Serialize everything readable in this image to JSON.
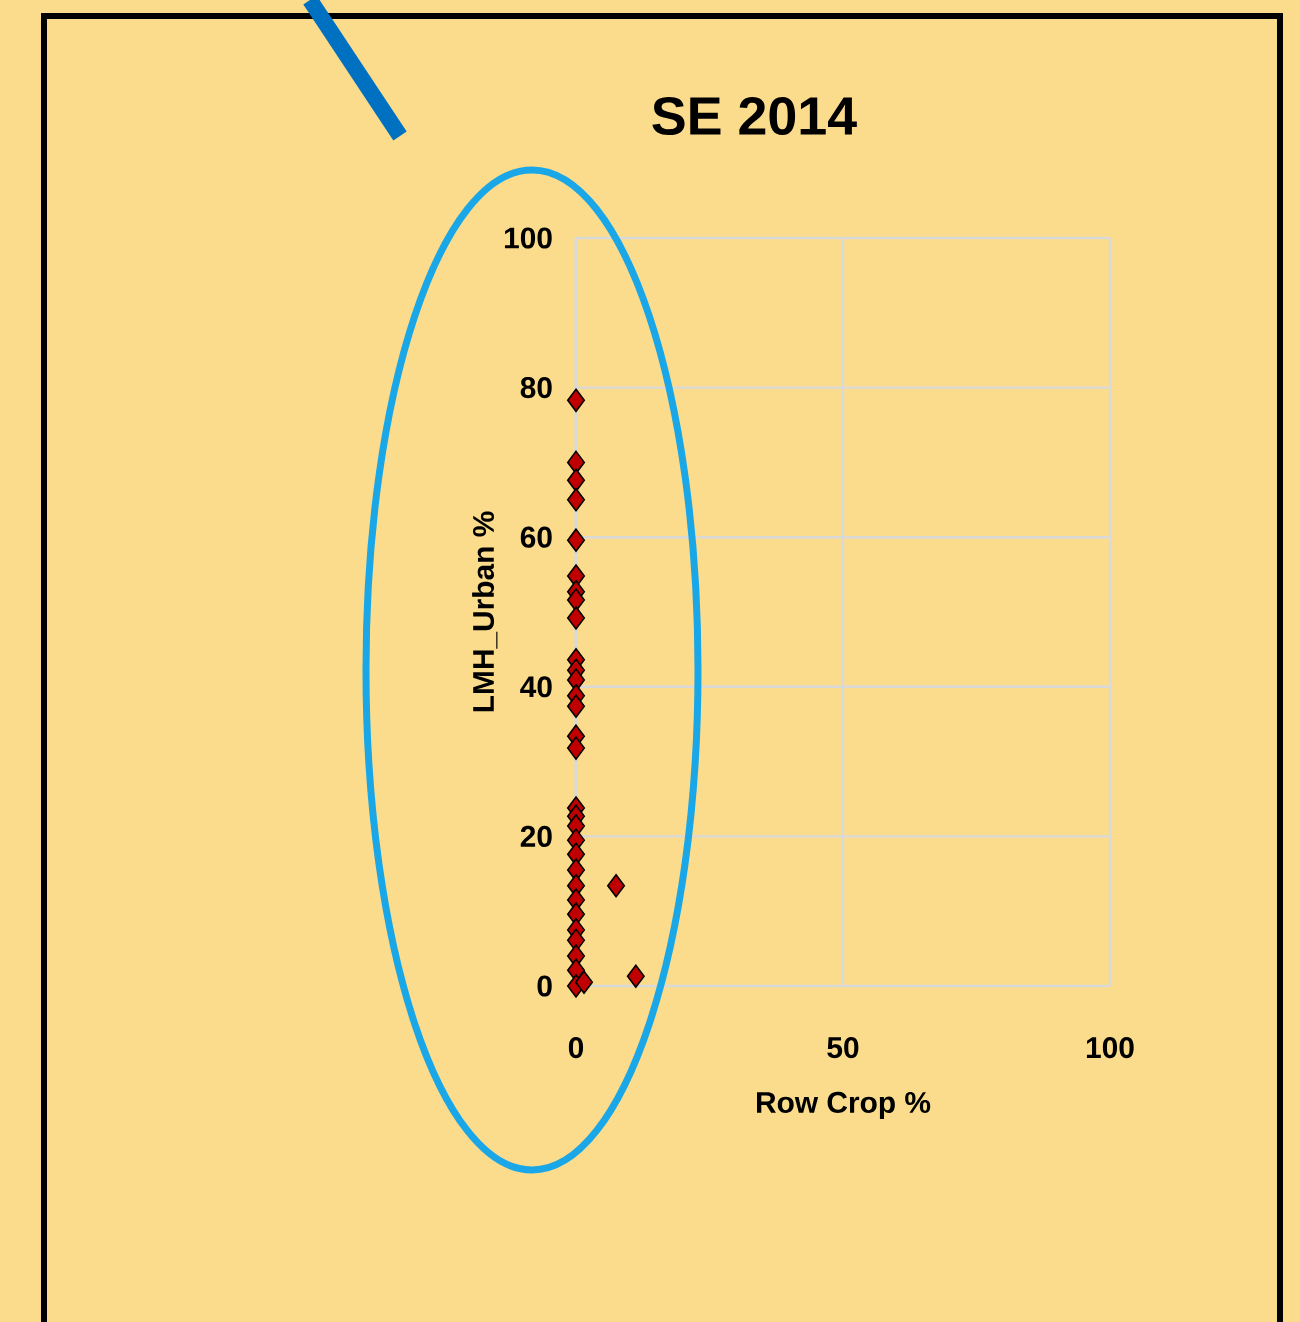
{
  "chart_data": {
    "type": "scatter",
    "title": "SE 2014",
    "xlabel": "Row Crop %",
    "ylabel": "LMH_Urban %",
    "x": [
      0,
      0,
      0,
      0,
      0,
      0,
      0,
      0,
      0,
      0,
      0,
      0,
      0,
      0,
      0,
      0,
      0,
      0,
      0,
      0,
      0,
      0,
      0,
      0,
      0,
      0,
      0,
      0,
      0,
      0,
      7.5,
      11.2,
      1.5
    ],
    "values": [
      78.3,
      70,
      67.6,
      65,
      59.6,
      54.8,
      52.7,
      51.6,
      49.2,
      43.6,
      42.2,
      40.9,
      38.8,
      37.4,
      33.4,
      31.8,
      23.8,
      22.7,
      21.4,
      19.5,
      17.6,
      15.5,
      13.4,
      11.5,
      9.6,
      7.5,
      6.1,
      4,
      2.1,
      0,
      13.4,
      1.3,
      0.5
    ],
    "color": "#c00000",
    "marker": "diamond",
    "grid": true,
    "xlim": [
      0,
      100
    ],
    "ylim": [
      0,
      100
    ],
    "xticks": [
      0,
      50,
      100
    ],
    "yticks": [
      0,
      20,
      40,
      60,
      80,
      100
    ]
  }
}
